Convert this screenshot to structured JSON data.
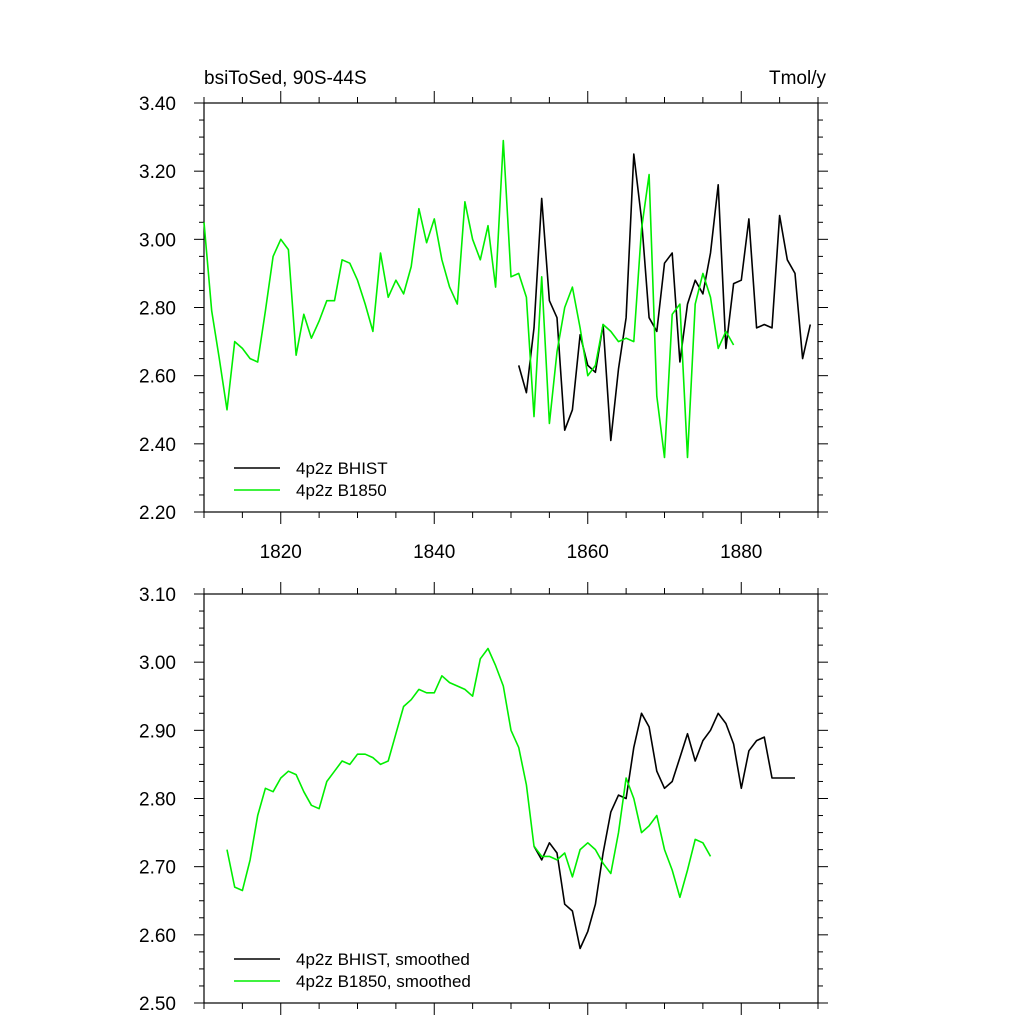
{
  "chart_data": [
    {
      "type": "line",
      "title": "bsiToSed, 90S-44S",
      "units": "Tmol/y",
      "xlim": [
        1810,
        1890
      ],
      "ylim": [
        2.2,
        3.4
      ],
      "xticks": [
        1820,
        1840,
        1860,
        1880
      ],
      "xtick_labels": [
        "1820",
        "1840",
        "1860",
        "1880"
      ],
      "yticks": [
        2.2,
        2.4,
        2.6,
        2.8,
        3.0,
        3.2,
        3.4
      ],
      "ytick_labels": [
        "2.20",
        "2.40",
        "2.60",
        "2.80",
        "3.00",
        "3.20",
        "3.40"
      ],
      "legend_position": "bottom-left",
      "series": [
        {
          "name": "4p2z BHIST",
          "color": "#000000",
          "x": [
            1851,
            1852,
            1853,
            1854,
            1855,
            1856,
            1857,
            1858,
            1859,
            1860,
            1861,
            1862,
            1863,
            1864,
            1865,
            1866,
            1867,
            1868,
            1869,
            1870,
            1871,
            1872,
            1873,
            1874,
            1875,
            1876,
            1877,
            1878,
            1879,
            1880,
            1881,
            1882,
            1883,
            1884,
            1885,
            1886,
            1887,
            1888,
            1889
          ],
          "y": [
            2.63,
            2.55,
            2.74,
            3.12,
            2.82,
            2.77,
            2.44,
            2.5,
            2.72,
            2.63,
            2.61,
            2.75,
            2.41,
            2.62,
            2.77,
            3.25,
            3.06,
            2.77,
            2.73,
            2.93,
            2.96,
            2.64,
            2.81,
            2.88,
            2.84,
            2.96,
            3.16,
            2.68,
            2.87,
            2.88,
            3.06,
            2.74,
            2.75,
            2.74,
            3.07,
            2.94,
            2.9,
            2.65,
            2.75
          ]
        },
        {
          "name": "4p2z B1850",
          "color": "#00ee00",
          "x": [
            1810,
            1811,
            1812,
            1813,
            1814,
            1815,
            1816,
            1817,
            1818,
            1819,
            1820,
            1821,
            1822,
            1823,
            1824,
            1825,
            1826,
            1827,
            1828,
            1829,
            1830,
            1831,
            1832,
            1833,
            1834,
            1835,
            1836,
            1837,
            1838,
            1839,
            1840,
            1841,
            1842,
            1843,
            1844,
            1845,
            1846,
            1847,
            1848,
            1849,
            1850,
            1851,
            1852,
            1853,
            1854,
            1855,
            1856,
            1857,
            1858,
            1859,
            1860,
            1861,
            1862,
            1863,
            1864,
            1865,
            1866,
            1867,
            1868,
            1869,
            1870,
            1871,
            1872,
            1873,
            1874,
            1875,
            1876,
            1877,
            1878,
            1879
          ],
          "y": [
            3.05,
            2.79,
            2.65,
            2.5,
            2.7,
            2.68,
            2.65,
            2.64,
            2.79,
            2.95,
            3.0,
            2.97,
            2.66,
            2.78,
            2.71,
            2.76,
            2.82,
            2.82,
            2.94,
            2.93,
            2.88,
            2.81,
            2.73,
            2.96,
            2.83,
            2.88,
            2.84,
            2.92,
            3.09,
            2.99,
            3.06,
            2.94,
            2.86,
            2.81,
            3.11,
            3.0,
            2.94,
            3.04,
            2.86,
            3.29,
            2.89,
            2.9,
            2.83,
            2.48,
            2.89,
            2.46,
            2.67,
            2.8,
            2.86,
            2.74,
            2.6,
            2.63,
            2.75,
            2.73,
            2.7,
            2.71,
            2.7,
            3.03,
            3.19,
            2.54,
            2.36,
            2.78,
            2.81,
            2.36,
            2.81,
            2.9,
            2.83,
            2.68,
            2.73,
            2.69
          ]
        }
      ]
    },
    {
      "type": "line",
      "title": "",
      "xlim": [
        1810,
        1890
      ],
      "ylim": [
        2.5,
        3.1
      ],
      "xticks": [
        1820,
        1840,
        1860,
        1880
      ],
      "yticks": [
        2.5,
        2.6,
        2.7,
        2.8,
        2.9,
        3.0,
        3.1
      ],
      "ytick_labels": [
        "2.50",
        "2.60",
        "2.70",
        "2.80",
        "2.90",
        "3.00",
        "3.10"
      ],
      "legend_position": "bottom-left",
      "series": [
        {
          "name": "4p2z BHIST, smoothed",
          "color": "#000000",
          "x": [
            1853,
            1854,
            1855,
            1856,
            1857,
            1858,
            1859,
            1860,
            1861,
            1862,
            1863,
            1864,
            1865,
            1866,
            1867,
            1868,
            1869,
            1870,
            1871,
            1872,
            1873,
            1874,
            1875,
            1876,
            1877,
            1878,
            1879,
            1880,
            1881,
            1882,
            1883,
            1884,
            1885,
            1886,
            1887
          ],
          "y": [
            2.73,
            2.71,
            2.735,
            2.72,
            2.645,
            2.635,
            2.58,
            2.605,
            2.645,
            2.72,
            2.78,
            2.805,
            2.8,
            2.875,
            2.925,
            2.905,
            2.84,
            2.815,
            2.825,
            2.86,
            2.895,
            2.855,
            2.885,
            2.9,
            2.925,
            2.91,
            2.88,
            2.815,
            2.87,
            2.885,
            2.89,
            2.83,
            2.83,
            2.83,
            2.83
          ]
        },
        {
          "name": "4p2z B1850, smoothed",
          "color": "#00ee00",
          "x": [
            1813,
            1814,
            1815,
            1816,
            1817,
            1818,
            1819,
            1820,
            1821,
            1822,
            1823,
            1824,
            1825,
            1826,
            1827,
            1828,
            1829,
            1830,
            1831,
            1832,
            1833,
            1834,
            1835,
            1836,
            1837,
            1838,
            1839,
            1840,
            1841,
            1842,
            1843,
            1844,
            1845,
            1846,
            1847,
            1848,
            1849,
            1850,
            1851,
            1852,
            1853,
            1854,
            1855,
            1856,
            1857,
            1858,
            1859,
            1860,
            1861,
            1862,
            1863,
            1864,
            1865,
            1866,
            1867,
            1868,
            1869,
            1870,
            1871,
            1872,
            1873,
            1874,
            1875,
            1876
          ],
          "y": [
            2.725,
            2.67,
            2.665,
            2.71,
            2.775,
            2.815,
            2.81,
            2.83,
            2.84,
            2.835,
            2.81,
            2.79,
            2.785,
            2.825,
            2.84,
            2.855,
            2.85,
            2.865,
            2.865,
            2.86,
            2.85,
            2.855,
            2.895,
            2.935,
            2.945,
            2.96,
            2.955,
            2.955,
            2.98,
            2.97,
            2.965,
            2.96,
            2.95,
            3.005,
            3.02,
            2.995,
            2.965,
            2.9,
            2.875,
            2.82,
            2.73,
            2.715,
            2.715,
            2.71,
            2.72,
            2.685,
            2.725,
            2.735,
            2.725,
            2.705,
            2.69,
            2.75,
            2.83,
            2.8,
            2.75,
            2.76,
            2.775,
            2.725,
            2.695,
            2.655,
            2.695,
            2.74,
            2.735,
            2.715
          ]
        }
      ]
    }
  ]
}
